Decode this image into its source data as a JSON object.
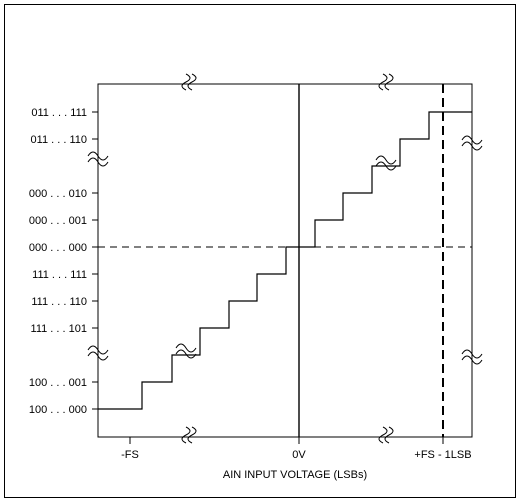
{
  "chart_data": {
    "type": "line",
    "title": "",
    "xlabel": "AIN INPUT VOLTAGE (LSBs)",
    "x_tick_labels": [
      "-FS",
      "0V",
      "+FS - 1LSB"
    ],
    "y_tick_labels": [
      "011 . . . 111",
      "011 . . . 110",
      "000 . . . 010",
      "000 . . . 001",
      "000 . . . 000",
      "111 . . . 111",
      "111 . . . 110",
      "111 . . . 101",
      "100 . . . 001",
      "100 . . . 000"
    ],
    "series": [
      {
        "type": "step",
        "x_lsb": [
          -6,
          -5,
          -4,
          -3,
          -2,
          -1,
          0,
          1,
          2,
          3,
          4,
          5,
          6
        ],
        "code_level": [
          -4,
          -3,
          -2,
          -1,
          0,
          1,
          2,
          3,
          4,
          5,
          6,
          7,
          8
        ]
      }
    ]
  }
}
